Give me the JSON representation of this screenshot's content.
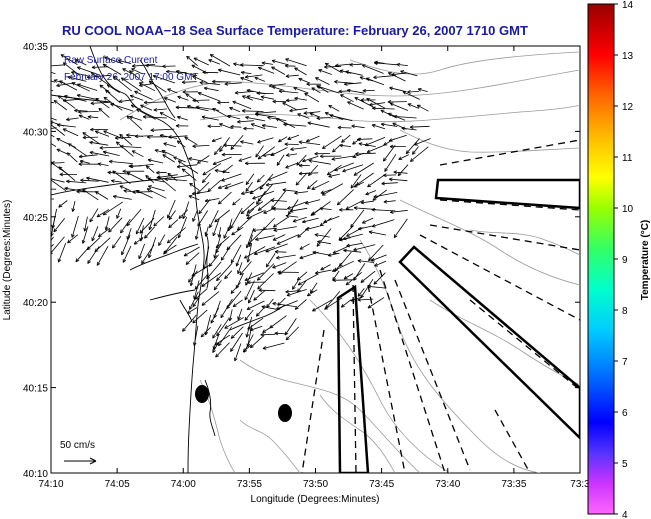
{
  "figure": {
    "title": "RU COOL  NOAA−18  Sea Surface Temperature:  February 26, 2007 1710 GMT",
    "subtitle_line1": "Raw Surface Current",
    "subtitle_line2": "February 26, 2007 17:00 GMT",
    "scale_label": "50 cm/s",
    "x_label": "Longitude (Degrees:Minutes)",
    "y_label": "Latitude (Degrees:Minutes)",
    "colorbar_label": "Temperature (°C)",
    "title_color": "#1a1aa0"
  },
  "axes": {
    "x_ticks": [
      "74:10",
      "74:05",
      "74:00",
      "73:55",
      "73:50",
      "73:45",
      "73:40",
      "73:35",
      "73:3"
    ],
    "y_ticks": [
      "40:35",
      "40:30",
      "40:25",
      "40:20",
      "40:15",
      "40:10"
    ]
  },
  "colorbar": {
    "min": 4,
    "max": 14,
    "ticks": [
      "14",
      "13",
      "12",
      "11",
      "10",
      "9",
      "8",
      "7",
      "6",
      "5",
      "4"
    ],
    "colors": [
      "#ff55ff",
      "#cc33ff",
      "#6633ff",
      "#0000ff",
      "#0077ff",
      "#00ccff",
      "#00ffcc",
      "#33ff66",
      "#99ff00",
      "#ffff00",
      "#ffbb00",
      "#ff6600",
      "#ff0000",
      "#cc0000",
      "#990000"
    ]
  }
}
